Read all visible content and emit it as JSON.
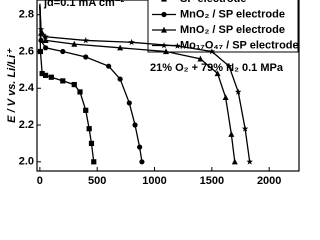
{
  "chart_data": {
    "type": "line",
    "y_label": "E / V vs. Li/Li⁺",
    "annotations": [
      "jd=0.1 mA cm⁻²",
      "21% O₂ + 79% N₂ 0.1 MPa"
    ],
    "xlim": [
      -25,
      2260
    ],
    "ylim": [
      1.95,
      2.88
    ],
    "xticks": [
      0,
      500,
      1000,
      1500,
      2000
    ],
    "yticks": [
      {
        "value": 2,
        "label": "2.0"
      },
      {
        "value": 2.2,
        "label": "2.2"
      },
      {
        "value": 2.4,
        "label": "2.4"
      },
      {
        "value": 2.6,
        "label": "2.6"
      },
      {
        "value": 2.8,
        "label": "2.8"
      }
    ],
    "series": [
      {
        "name": "SP electrode",
        "color": "#000000",
        "marker": "square",
        "x": [
          0,
          5,
          20,
          50,
          100,
          200,
          300,
          350,
          400,
          430,
          450,
          470
        ],
        "values": [
          2.85,
          2.6,
          2.48,
          2.47,
          2.46,
          2.44,
          2.42,
          2.38,
          2.28,
          2.18,
          2.1,
          2.0
        ]
      },
      {
        "name": "MnO₂ / SP electrode",
        "color": "#000000",
        "marker": "circle",
        "x": [
          0,
          10,
          50,
          200,
          400,
          600,
          700,
          780,
          830,
          870,
          890
        ],
        "values": [
          2.85,
          2.66,
          2.62,
          2.6,
          2.57,
          2.52,
          2.45,
          2.32,
          2.2,
          2.08,
          2.0
        ]
      },
      {
        "name": "MnO₂ / SP electrode",
        "color": "#000000",
        "marker": "triangle",
        "x": [
          0,
          10,
          50,
          300,
          700,
          1100,
          1400,
          1550,
          1620,
          1670,
          1700
        ],
        "values": [
          2.85,
          2.7,
          2.66,
          2.64,
          2.62,
          2.6,
          2.56,
          2.48,
          2.35,
          2.15,
          2.0
        ]
      },
      {
        "name": "Mo₁₇O₄₇ / SP electrode",
        "color": "#000000",
        "marker": "star",
        "x": [
          0,
          10,
          50,
          400,
          800,
          1200,
          1500,
          1650,
          1730,
          1790,
          1830
        ],
        "values": [
          2.86,
          2.72,
          2.68,
          2.66,
          2.65,
          2.63,
          2.6,
          2.52,
          2.38,
          2.18,
          2.0
        ]
      }
    ]
  }
}
